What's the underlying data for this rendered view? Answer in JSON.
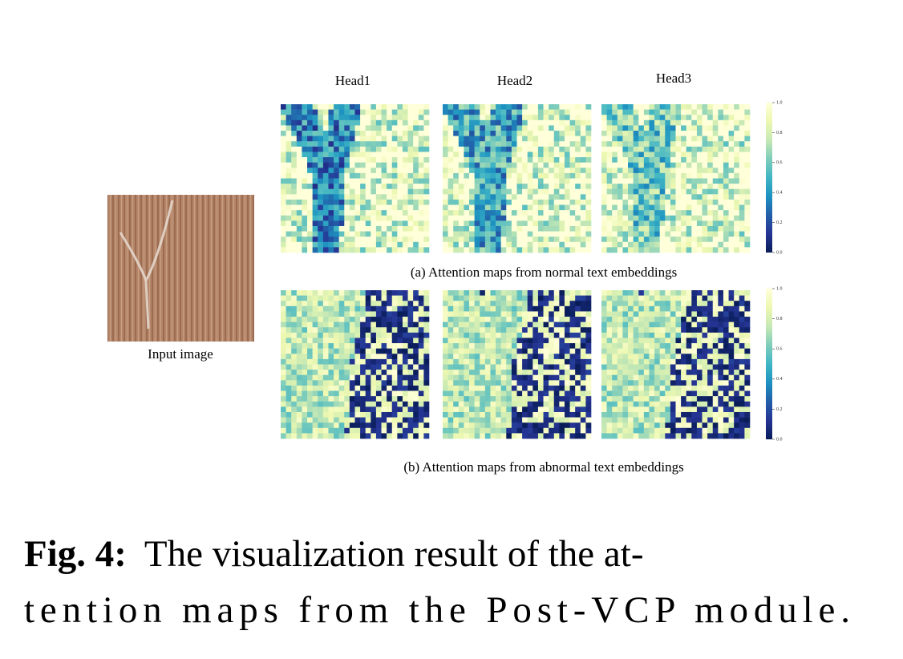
{
  "figure": {
    "heads": [
      "Head1",
      "Head2",
      "Head3"
    ],
    "colorbar_ticks": [
      "0.0",
      "0.2",
      "0.4",
      "0.6",
      "0.8",
      "1.0"
    ],
    "caption_a": "(a) Attention maps from normal text embeddings",
    "caption_b": "(b) Attention maps from abnormal text embeddings",
    "input_label": "Input image"
  },
  "caption": {
    "label": "Fig. 4:",
    "lines": [
      "The visualization result of the at-",
      "tention maps from the Post-VCP module."
    ]
  }
}
